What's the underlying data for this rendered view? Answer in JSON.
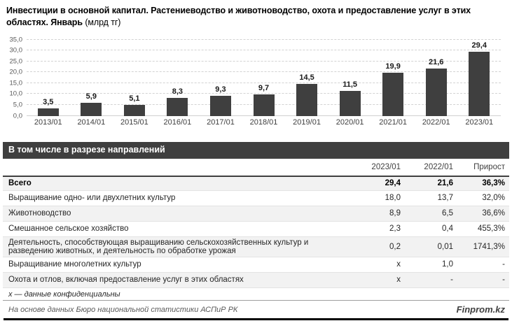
{
  "header": {
    "title_bold": "Инвестиции в основной капитал. Растениеводство и животноводство, охота и предоставление услуг в этих областях. Январь",
    "title_unit": "(млрд тг)"
  },
  "chart_data": {
    "type": "bar",
    "title": "Инвестиции в основной капитал. Растениеводство и животноводство, охота и предоставление услуг в этих областях. Январь (млрд тг)",
    "categories": [
      "2013/01",
      "2014/01",
      "2015/01",
      "2016/01",
      "2017/01",
      "2018/01",
      "2019/01",
      "2020/01",
      "2021/01",
      "2022/01",
      "2023/01"
    ],
    "values": [
      3.5,
      5.9,
      5.1,
      8.3,
      9.3,
      9.7,
      14.5,
      11.5,
      19.9,
      21.6,
      29.4
    ],
    "value_labels": [
      "3,5",
      "5,9",
      "5,1",
      "8,3",
      "9,3",
      "9,7",
      "14,5",
      "11,5",
      "19,9",
      "21,6",
      "29,4"
    ],
    "xlabel": "",
    "ylabel": "",
    "ylim": [
      0,
      35
    ],
    "yticks": [
      0,
      5,
      10,
      15,
      20,
      25,
      30,
      35
    ],
    "ytick_labels": [
      "0,0",
      "5,0",
      "10,0",
      "15,0",
      "20,0",
      "25,0",
      "30,0",
      "35,0"
    ],
    "grid": true,
    "legend": false,
    "bar_color": "#3f3f3f"
  },
  "table": {
    "section_title": "В том числе в разрезе направлений",
    "columns": [
      "2023/01",
      "2022/01",
      "Прирост"
    ],
    "rows": [
      {
        "label": "Всего",
        "v2023": "29,4",
        "v2022": "21,6",
        "growth": "36,3%",
        "bold": true
      },
      {
        "label": "Выращивание одно- или двухлетних культур",
        "v2023": "18,0",
        "v2022": "13,7",
        "growth": "32,0%",
        "bold": false
      },
      {
        "label": "Животноводство",
        "v2023": "8,9",
        "v2022": "6,5",
        "growth": "36,6%",
        "bold": false
      },
      {
        "label": "Смешанное сельское хозяйство",
        "v2023": "2,3",
        "v2022": "0,4",
        "growth": "455,3%",
        "bold": false
      },
      {
        "label": "Деятельность, способствующая выращиванию сельскохозяйственных культур и разведению животных, и деятельность по обработке урожая",
        "v2023": "0,2",
        "v2022": "0,01",
        "growth": "1741,3%",
        "bold": false
      },
      {
        "label": "Выращивание многолетних культур",
        "v2023": "x",
        "v2022": "1,0",
        "growth": "-",
        "bold": false
      },
      {
        "label": "Охота и отлов, включая предоставление услуг в этих областях",
        "v2023": "x",
        "v2022": "-",
        "growth": "-",
        "bold": false
      }
    ],
    "footnote": "x — данные конфиденциальны"
  },
  "footer": {
    "source": "На основе данных Бюро национальной статистики АСПиР РК",
    "brand": "Finprom.kz"
  },
  "colors": {
    "bar": "#3f3f3f",
    "section_header_bg": "#3f3f3f",
    "row_stripe": "#f2f2f2",
    "bottom_rule": "#000000"
  }
}
